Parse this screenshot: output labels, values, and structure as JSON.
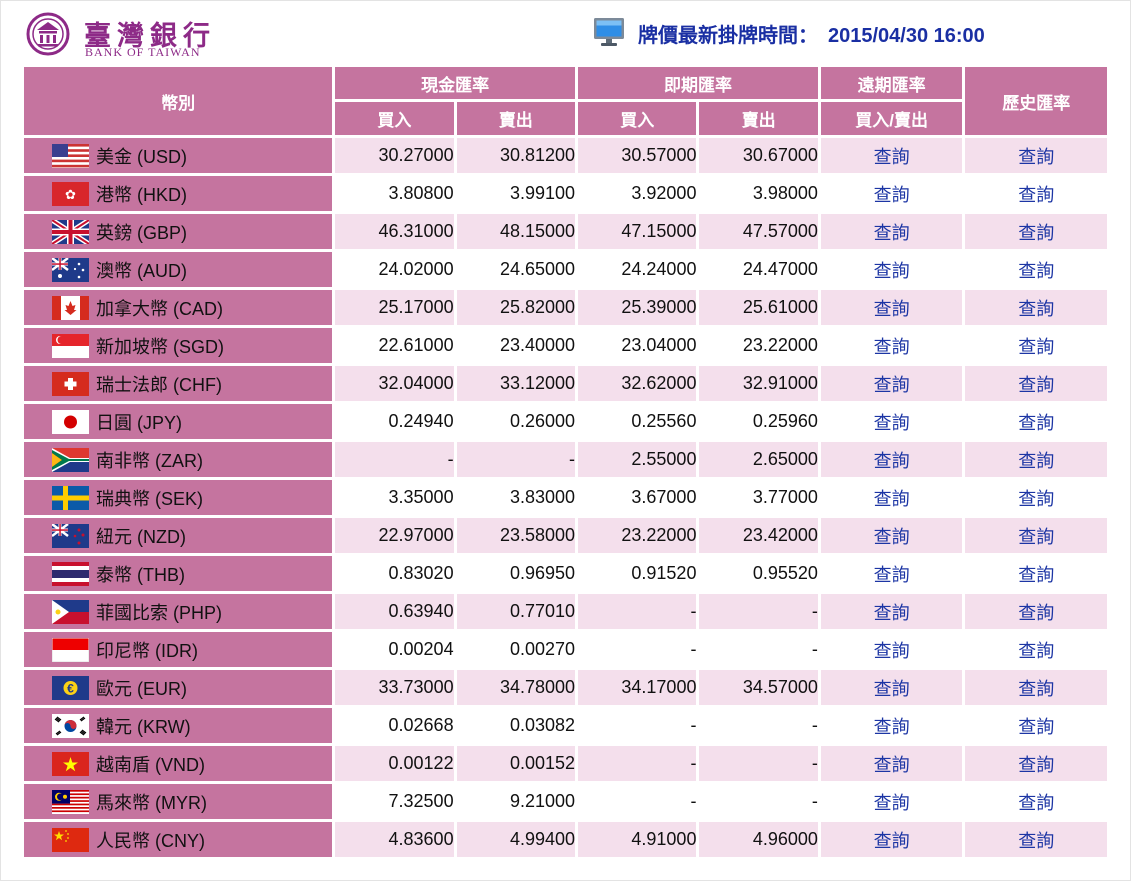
{
  "bank": {
    "name_zh": "臺灣銀行",
    "name_en": "BANK OF TAIWAN"
  },
  "update": {
    "label": "牌價最新掛牌時間：",
    "datetime": "2015/04/30 16:00"
  },
  "headers": {
    "currency": "幣別",
    "cash": "現金匯率",
    "spot": "即期匯率",
    "forward": "遠期匯率",
    "history": "歷史匯率",
    "buy": "買入",
    "sell": "賣出",
    "buy_sell": "買入/賣出"
  },
  "rows": [
    {
      "flag": "us-flag-icon",
      "name": "美金 (USD)",
      "cash_buy": "30.27000",
      "cash_sell": "30.81200",
      "spot_buy": "30.57000",
      "spot_sell": "30.67000",
      "forward": "查詢",
      "history": "查詢"
    },
    {
      "flag": "hk-flag-icon",
      "name": "港幣 (HKD)",
      "cash_buy": "3.80800",
      "cash_sell": "3.99100",
      "spot_buy": "3.92000",
      "spot_sell": "3.98000",
      "forward": "查詢",
      "history": "查詢"
    },
    {
      "flag": "uk-flag-icon",
      "name": "英鎊 (GBP)",
      "cash_buy": "46.31000",
      "cash_sell": "48.15000",
      "spot_buy": "47.15000",
      "spot_sell": "47.57000",
      "forward": "查詢",
      "history": "查詢"
    },
    {
      "flag": "au-flag-icon",
      "name": "澳幣 (AUD)",
      "cash_buy": "24.02000",
      "cash_sell": "24.65000",
      "spot_buy": "24.24000",
      "spot_sell": "24.47000",
      "forward": "查詢",
      "history": "查詢"
    },
    {
      "flag": "ca-flag-icon",
      "name": "加拿大幣 (CAD)",
      "cash_buy": "25.17000",
      "cash_sell": "25.82000",
      "spot_buy": "25.39000",
      "spot_sell": "25.61000",
      "forward": "查詢",
      "history": "查詢"
    },
    {
      "flag": "sg-flag-icon",
      "name": "新加坡幣 (SGD)",
      "cash_buy": "22.61000",
      "cash_sell": "23.40000",
      "spot_buy": "23.04000",
      "spot_sell": "23.22000",
      "forward": "查詢",
      "history": "查詢"
    },
    {
      "flag": "ch-flag-icon",
      "name": "瑞士法郎 (CHF)",
      "cash_buy": "32.04000",
      "cash_sell": "33.12000",
      "spot_buy": "32.62000",
      "spot_sell": "32.91000",
      "forward": "查詢",
      "history": "查詢"
    },
    {
      "flag": "jp-flag-icon",
      "name": "日圓 (JPY)",
      "cash_buy": "0.24940",
      "cash_sell": "0.26000",
      "spot_buy": "0.25560",
      "spot_sell": "0.25960",
      "forward": "查詢",
      "history": "查詢"
    },
    {
      "flag": "za-flag-icon",
      "name": "南非幣 (ZAR)",
      "cash_buy": "-",
      "cash_sell": "-",
      "spot_buy": "2.55000",
      "spot_sell": "2.65000",
      "forward": "查詢",
      "history": "查詢"
    },
    {
      "flag": "se-flag-icon",
      "name": "瑞典幣 (SEK)",
      "cash_buy": "3.35000",
      "cash_sell": "3.83000",
      "spot_buy": "3.67000",
      "spot_sell": "3.77000",
      "forward": "查詢",
      "history": "查詢"
    },
    {
      "flag": "nz-flag-icon",
      "name": "紐元 (NZD)",
      "cash_buy": "22.97000",
      "cash_sell": "23.58000",
      "spot_buy": "23.22000",
      "spot_sell": "23.42000",
      "forward": "查詢",
      "history": "查詢"
    },
    {
      "flag": "th-flag-icon",
      "name": "泰幣 (THB)",
      "cash_buy": "0.83020",
      "cash_sell": "0.96950",
      "spot_buy": "0.91520",
      "spot_sell": "0.95520",
      "forward": "查詢",
      "history": "查詢"
    },
    {
      "flag": "ph-flag-icon",
      "name": "菲國比索 (PHP)",
      "cash_buy": "0.63940",
      "cash_sell": "0.77010",
      "spot_buy": "-",
      "spot_sell": "-",
      "forward": "查詢",
      "history": "查詢"
    },
    {
      "flag": "id-flag-icon",
      "name": "印尼幣 (IDR)",
      "cash_buy": "0.00204",
      "cash_sell": "0.00270",
      "spot_buy": "-",
      "spot_sell": "-",
      "forward": "查詢",
      "history": "查詢"
    },
    {
      "flag": "eu-flag-icon",
      "name": "歐元 (EUR)",
      "cash_buy": "33.73000",
      "cash_sell": "34.78000",
      "spot_buy": "34.17000",
      "spot_sell": "34.57000",
      "forward": "查詢",
      "history": "查詢"
    },
    {
      "flag": "kr-flag-icon",
      "name": "韓元 (KRW)",
      "cash_buy": "0.02668",
      "cash_sell": "0.03082",
      "spot_buy": "-",
      "spot_sell": "-",
      "forward": "查詢",
      "history": "查詢"
    },
    {
      "flag": "vn-flag-icon",
      "name": "越南盾 (VND)",
      "cash_buy": "0.00122",
      "cash_sell": "0.00152",
      "spot_buy": "-",
      "spot_sell": "-",
      "forward": "查詢",
      "history": "查詢"
    },
    {
      "flag": "my-flag-icon",
      "name": "馬來幣 (MYR)",
      "cash_buy": "7.32500",
      "cash_sell": "9.21000",
      "spot_buy": "-",
      "spot_sell": "-",
      "forward": "查詢",
      "history": "查詢"
    },
    {
      "flag": "cn-flag-icon",
      "name": "人民幣 (CNY)",
      "cash_buy": "4.83600",
      "cash_sell": "4.99400",
      "spot_buy": "4.91000",
      "spot_sell": "4.96000",
      "forward": "查詢",
      "history": "查詢"
    }
  ],
  "colors": {
    "header_bg": "#c5749f",
    "row_alt": "#f4dfec",
    "link": "#1c35a4",
    "title": "#1a2fa3",
    "brand": "#8d2a87"
  }
}
